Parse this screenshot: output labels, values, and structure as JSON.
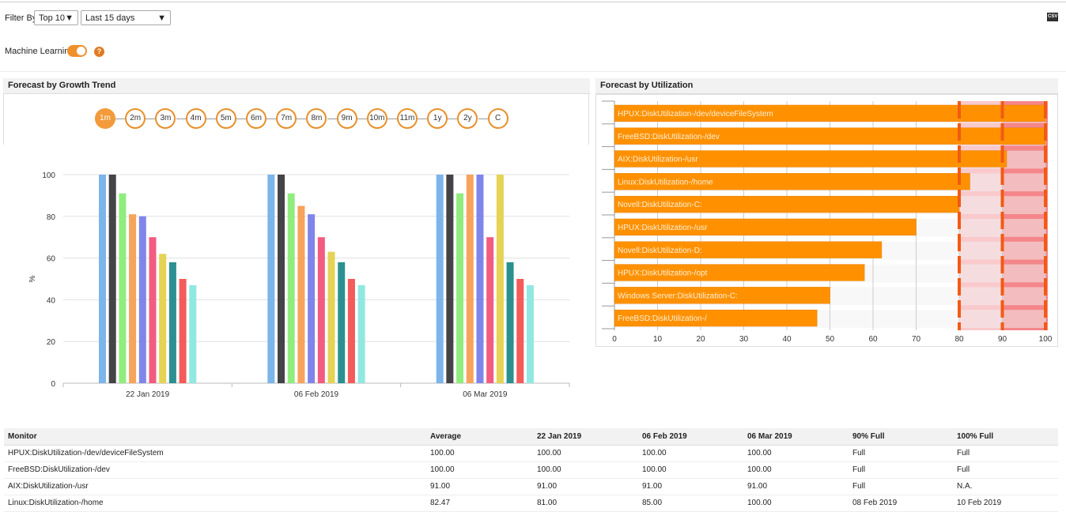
{
  "filter": {
    "label": "Filter By",
    "top": "Top 10",
    "range": "Last 15 days"
  },
  "ml": {
    "label": "Machine Learning",
    "enabled": true,
    "help": "?"
  },
  "export_icon": "csv-export-icon",
  "growth": {
    "title": "Forecast by Growth Trend",
    "periods": [
      "1m",
      "2m",
      "3m",
      "4m",
      "5m",
      "6m",
      "7m",
      "8m",
      "9m",
      "10m",
      "11m",
      "1y",
      "2y",
      "C"
    ],
    "active": "1m"
  },
  "utilization": {
    "title": "Forecast by Utilization"
  },
  "chart_data": [
    {
      "type": "bar",
      "ylabel": "%",
      "ylim": [
        0,
        100
      ],
      "yticks": [
        "0",
        "20",
        "40",
        "60",
        "80",
        "100"
      ],
      "categories": [
        "22 Jan 2019",
        "06 Feb 2019",
        "06 Mar 2019"
      ],
      "grid": true,
      "colors": [
        "#7cb5ec",
        "#434348",
        "#90ed7d",
        "#f7a35c",
        "#8085e9",
        "#f15c80",
        "#e4d354",
        "#2b908f",
        "#f45b5b",
        "#91e8e1"
      ],
      "series": [
        {
          "values": [
            100,
            100,
            100
          ]
        },
        {
          "values": [
            100,
            100,
            100
          ]
        },
        {
          "values": [
            91,
            91,
            91
          ]
        },
        {
          "values": [
            81,
            85,
            100
          ]
        },
        {
          "values": [
            80,
            81,
            100
          ]
        },
        {
          "values": [
            70,
            70,
            70
          ]
        },
        {
          "values": [
            62,
            63,
            100
          ]
        },
        {
          "values": [
            58,
            58,
            58
          ]
        },
        {
          "values": [
            50,
            50,
            50
          ]
        },
        {
          "values": [
            47,
            47,
            47
          ]
        }
      ]
    },
    {
      "type": "bar",
      "orientation": "horizontal",
      "xlim": [
        0,
        100
      ],
      "xticks": [
        "0",
        "10",
        "20",
        "30",
        "40",
        "50",
        "60",
        "70",
        "80",
        "90",
        "100"
      ],
      "color": "#ff9100",
      "threshold_bands": [
        {
          "from": 80,
          "to": 90,
          "color": "#f9c9cc"
        },
        {
          "from": 90,
          "to": 100,
          "color": "#f4868a"
        }
      ],
      "categories": [
        "HPUX:DiskUtilization-/dev/deviceFileSystem",
        "FreeBSD:DiskUtilization-/dev",
        "AIX:DiskUtilization-/usr",
        "Linux:DiskUtilization-/home",
        "Novell:DiskUtilization-C:",
        "HPUX:DiskUtilization-/usr",
        "Novell:DiskUtilization-D:",
        "HPUX:DiskUtilization-/opt",
        "Windows Server:DiskUtilization-C:",
        "FreeBSD:DiskUtilization-/"
      ],
      "values": [
        100,
        100,
        91,
        82.47,
        80,
        70,
        62,
        58,
        50,
        47
      ]
    }
  ],
  "table": {
    "headers": [
      "Monitor",
      "Average",
      "22 Jan 2019",
      "06 Feb 2019",
      "06 Mar 2019",
      "90% Full",
      "100% Full"
    ],
    "rows": [
      [
        "HPUX:DiskUtilization-/dev/deviceFileSystem",
        "100.00",
        "100.00",
        "100.00",
        "100.00",
        "Full",
        "Full"
      ],
      [
        "FreeBSD:DiskUtilization-/dev",
        "100.00",
        "100.00",
        "100.00",
        "100.00",
        "Full",
        "Full"
      ],
      [
        "AIX:DiskUtilization-/usr",
        "91.00",
        "91.00",
        "91.00",
        "91.00",
        "Full",
        "N.A."
      ],
      [
        "Linux:DiskUtilization-/home",
        "82.47",
        "81.00",
        "85.00",
        "100.00",
        "08 Feb 2019",
        "10 Feb 2019"
      ]
    ]
  }
}
